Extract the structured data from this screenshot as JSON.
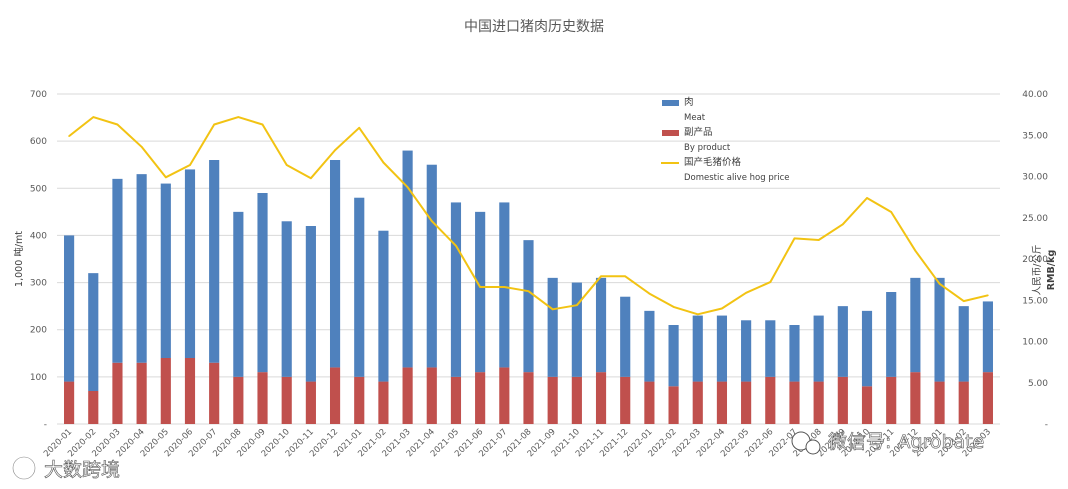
{
  "chart_data": {
    "type": "bar",
    "title": "中国进口猪肉历史数据",
    "categories": [
      "2020-01",
      "2020-02",
      "2020-03",
      "2020-04",
      "2020-05",
      "2020-06",
      "2020-07",
      "2020-08",
      "2020-09",
      "2020-10",
      "2020-11",
      "2020-12",
      "2021-01",
      "2021-02",
      "2021-03",
      "2021-04",
      "2021-05",
      "2021-06",
      "2021-07",
      "2021-08",
      "2021-09",
      "2021-10",
      "2021-11",
      "2021-12",
      "2022-01",
      "2022-02",
      "2022-03",
      "2022-04",
      "2022-05",
      "2022-06",
      "2022-07",
      "2022-08",
      "2022-09",
      "2022-10",
      "2022-11",
      "2022-12",
      "2023-01",
      "2023-02",
      "2023-03"
    ],
    "series": [
      {
        "name": "肉",
        "name_en": "Meat",
        "type": "stacked-bar",
        "axis": "left",
        "color": "#4F81BD",
        "values": [
          310,
          250,
          390,
          400,
          370,
          400,
          430,
          350,
          380,
          330,
          330,
          440,
          380,
          320,
          460,
          430,
          370,
          340,
          350,
          280,
          210,
          200,
          200,
          170,
          150,
          130,
          140,
          140,
          130,
          120,
          120,
          140,
          150,
          160,
          180,
          200,
          220,
          160,
          150
        ]
      },
      {
        "name": "副产品",
        "name_en": "By product",
        "type": "stacked-bar",
        "axis": "left",
        "color": "#C0504D",
        "values": [
          90,
          70,
          130,
          130,
          140,
          140,
          130,
          100,
          110,
          100,
          90,
          120,
          100,
          90,
          120,
          120,
          100,
          110,
          120,
          110,
          100,
          100,
          110,
          100,
          90,
          80,
          90,
          90,
          90,
          100,
          90,
          90,
          100,
          80,
          100,
          110,
          90,
          90,
          110
        ]
      },
      {
        "name": "国产毛猪价格",
        "name_en": "Domestic alive hog price",
        "type": "line",
        "axis": "right",
        "color": "#F2C313",
        "values": [
          34.9,
          37.2,
          36.3,
          33.6,
          29.9,
          31.4,
          36.3,
          37.2,
          36.3,
          31.4,
          29.8,
          33.2,
          35.9,
          31.7,
          28.7,
          24.6,
          21.6,
          16.6,
          16.6,
          16.1,
          13.9,
          14.4,
          17.9,
          17.9,
          15.8,
          14.2,
          13.3,
          14.0,
          15.9,
          17.2,
          22.5,
          22.3,
          24.2,
          27.4,
          25.7,
          21.0,
          17.0,
          14.9,
          15.6
        ]
      }
    ],
    "ylabel_left": "1,000 吨/mt",
    "ylabel_right": "人民币/公斤",
    "ylabel_right_unit": "RMB/kg",
    "ylim_left": [
      0,
      700
    ],
    "ylim_right": [
      0,
      40
    ],
    "yticks_left": [
      "-",
      "100",
      "200",
      "300",
      "400",
      "500",
      "600",
      "700"
    ],
    "yticks_right": [
      "-",
      "5.00",
      "10.00",
      "15.00",
      "20.00",
      "25.00",
      "30.00",
      "35.00",
      "40.00"
    ],
    "grid": true,
    "legend_position": "top-center"
  },
  "watermarks": {
    "bottom_right": "微信号: Agrobate",
    "bottom_left": "大数跨境"
  },
  "colors": {
    "grid": "#D9D9D9",
    "text": "#595959"
  },
  "icons": {
    "bottom_right": "wechat-icon",
    "bottom_left": "logo-icon"
  }
}
